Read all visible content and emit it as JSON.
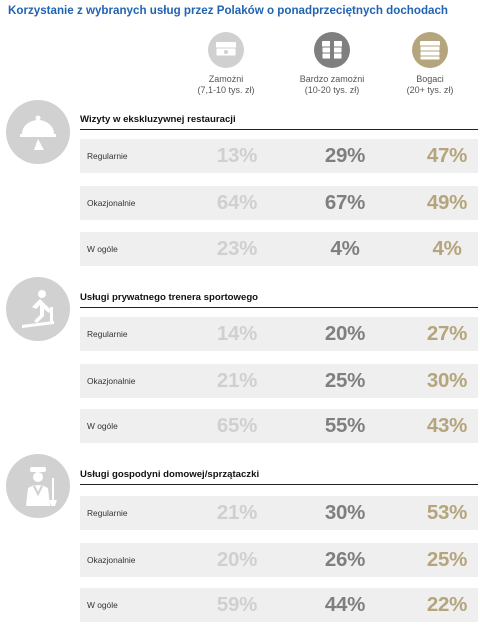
{
  "title": "Korzystanie z wybranych usług przez Polaków o ponadprzeciętnych dochodach",
  "colors": {
    "title": "#1f63b2",
    "group1": "#d0d0d0",
    "group2": "#7f7f7f",
    "group3": "#b5a57c",
    "row_background": "#efefef",
    "section_icon_background": "#d1d1d1"
  },
  "chart_data": {
    "type": "table",
    "groups": [
      {
        "name": "Zamożni",
        "sub": "(7,1-10 tys. zł)",
        "icon": "banknote-stack-icon",
        "color": "#d0d0d0"
      },
      {
        "name": "Bardzo zamożni",
        "sub": "(10-20 tys. zł)",
        "icon": "banknote-bundle-icon",
        "color": "#7f7f7f"
      },
      {
        "name": "Bogaci",
        "sub": "(20+ tys. zł)",
        "icon": "money-pile-icon",
        "color": "#b5a57c"
      }
    ],
    "sections": [
      {
        "title": "Wizyty w ekskluzywnej restauracji",
        "icon": "waiter-cloche-icon",
        "rows": [
          {
            "label": "Regularnie",
            "values": [
              "13%",
              "29%",
              "47%"
            ]
          },
          {
            "label": "Okazjonalnie",
            "values": [
              "64%",
              "67%",
              "49%"
            ]
          },
          {
            "label": "W ogóle",
            "values": [
              "23%",
              "4%",
              "4%"
            ]
          }
        ]
      },
      {
        "title": "Usługi prywatnego trenera sportowego",
        "icon": "treadmill-runner-icon",
        "rows": [
          {
            "label": "Regularnie",
            "values": [
              "14%",
              "20%",
              "27%"
            ]
          },
          {
            "label": "Okazjonalnie",
            "values": [
              "21%",
              "25%",
              "30%"
            ]
          },
          {
            "label": "W ogóle",
            "values": [
              "65%",
              "55%",
              "43%"
            ]
          }
        ]
      },
      {
        "title": "Usługi gospodyni domowej/sprzątaczki",
        "icon": "housekeeper-icon",
        "rows": [
          {
            "label": "Regularnie",
            "values": [
              "21%",
              "30%",
              "53%"
            ]
          },
          {
            "label": "Okazjonalnie",
            "values": [
              "20%",
              "26%",
              "25%"
            ]
          },
          {
            "label": "W ogóle",
            "values": [
              "59%",
              "44%",
              "22%"
            ]
          }
        ]
      }
    ]
  }
}
